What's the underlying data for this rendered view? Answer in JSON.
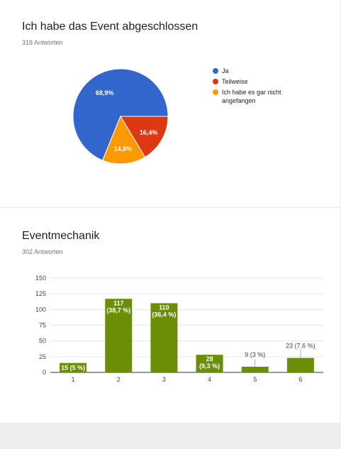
{
  "questions": [
    {
      "title": "Ich habe das Event abgeschlossen",
      "responses": "318 Antworten"
    },
    {
      "title": "Eventmechanik",
      "responses": "302 Antworten"
    }
  ],
  "chart_data": [
    {
      "type": "pie",
      "title": "Ich habe das Event abgeschlossen",
      "slices": [
        {
          "label": "Ja",
          "percent": 68.9,
          "display": "68,9%",
          "color": "#3366cc"
        },
        {
          "label": "Teilweise",
          "percent": 16.4,
          "display": "16,4%",
          "color": "#dc3912"
        },
        {
          "label": "Ich habe es gar nicht angefangen",
          "percent": 14.8,
          "display": "14,8%",
          "color": "#ff9900"
        }
      ],
      "legend_position": "right"
    },
    {
      "type": "bar",
      "title": "Eventmechanik",
      "categories": [
        "1",
        "2",
        "3",
        "4",
        "5",
        "6"
      ],
      "values": [
        15,
        117,
        110,
        28,
        9,
        23
      ],
      "value_labels": [
        [
          "15 (5 %)"
        ],
        [
          "117",
          "(38,7 %)"
        ],
        [
          "110",
          "(36,4 %)"
        ],
        [
          "28",
          "(9,3 %)"
        ],
        [
          "9 (3 %)"
        ],
        [
          "23 (7,6 %)"
        ]
      ],
      "label_inside": [
        true,
        true,
        true,
        true,
        false,
        false
      ],
      "yticks": [
        0,
        25,
        50,
        75,
        100,
        125,
        150
      ],
      "ylim": [
        0,
        150
      ],
      "bar_color": "#6a8e05",
      "grid": true
    }
  ]
}
